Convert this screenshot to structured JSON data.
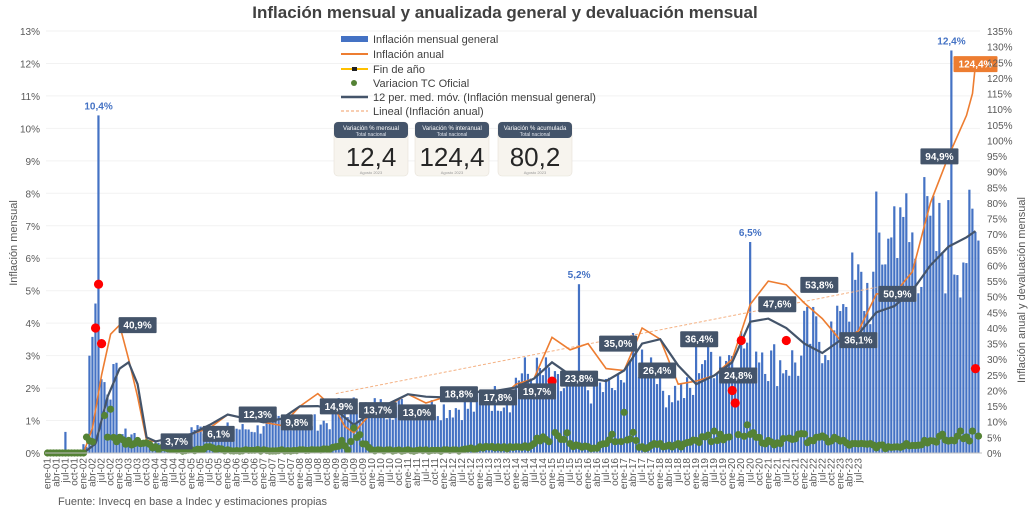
{
  "chart_data": {
    "type": "bar",
    "title": "Inflación mensual y anualizada general y devaluación mensual",
    "ylabel": "Inflación mensual",
    "y2label": "Inflación anual y devaluación mensual",
    "ylim": [
      0,
      13
    ],
    "y2lim": [
      0,
      135
    ],
    "yticks": [
      "0%",
      "1%",
      "2%",
      "3%",
      "4%",
      "5%",
      "6%",
      "7%",
      "8%",
      "9%",
      "10%",
      "11%",
      "12%",
      "13%"
    ],
    "y2ticks": [
      "0%",
      "5%",
      "10%",
      "15%",
      "20%",
      "25%",
      "30%",
      "35%",
      "40%",
      "45%",
      "50%",
      "55%",
      "60%",
      "65%",
      "70%",
      "75%",
      "80%",
      "85%",
      "90%",
      "95%",
      "100%",
      "105%",
      "110%",
      "115%",
      "120%",
      "125%",
      "130%",
      "135%"
    ],
    "xticks": [
      "ene-01",
      "abr-01",
      "jul-01",
      "oct-01",
      "ene-02",
      "abr-02",
      "jul-02",
      "oct-02",
      "ene-03",
      "abr-03",
      "jul-03",
      "oct-03",
      "ene-04",
      "abr-04",
      "jul-04",
      "oct-04",
      "ene-05",
      "abr-05",
      "jul-05",
      "oct-05",
      "ene-06",
      "abr-06",
      "jul-06",
      "oct-06",
      "ene-07",
      "abr-07",
      "jul-07",
      "oct-07",
      "ene-08",
      "abr-08",
      "jul-08",
      "oct-08",
      "ene-09",
      "abr-09",
      "jul-09",
      "oct-09",
      "ene-10",
      "abr-10",
      "jul-10",
      "oct-10",
      "ene-11",
      "abr-11",
      "jul-11",
      "oct-11",
      "ene-12",
      "abr-12",
      "jul-12",
      "oct-12",
      "ene-13",
      "abr-13",
      "jul-13",
      "oct-13",
      "ene-14",
      "abr-14",
      "jul-14",
      "oct-14",
      "ene-15",
      "abr-15",
      "jul-15",
      "oct-15",
      "ene-16",
      "abr-16",
      "jul-16",
      "oct-16",
      "ene-17",
      "abr-17",
      "jul-17",
      "oct-17",
      "ene-18",
      "abr-18",
      "jul-18",
      "oct-18",
      "ene-19",
      "abr-19",
      "jul-19",
      "oct-19",
      "ene-20",
      "abr-20",
      "jul-20",
      "oct-20",
      "ene-21",
      "abr-21",
      "jul-21",
      "oct-21",
      "ene-22",
      "abr-22",
      "jul-22",
      "oct-22",
      "ene-23",
      "abr-23",
      "jul-23"
    ],
    "legend": [
      "Inflación mensual general",
      "Inflación anual",
      "Fin de año",
      "Variacion TC Oficial",
      "12 per. med. móv. (Inflación mensual general)",
      "Lineal (Inflación anual)"
    ],
    "legend_position": "top-center",
    "colors": {
      "monthly": "#4472C4",
      "annual": "#ED7D31",
      "year_end": "#FFC000",
      "fx": "#548235",
      "fx_outlier": "#FF0000",
      "moving_avg": "#44546A",
      "trend": "#F4B183"
    },
    "series_annual_pct": [
      [
        0,
        0
      ],
      [
        12,
        0
      ],
      [
        15,
        8
      ],
      [
        18,
        25
      ],
      [
        21,
        38
      ],
      [
        24,
        40.9
      ],
      [
        27,
        30
      ],
      [
        30,
        18
      ],
      [
        33,
        4
      ],
      [
        36,
        3.7
      ],
      [
        42,
        5
      ],
      [
        48,
        6.1
      ],
      [
        54,
        8
      ],
      [
        60,
        12.3
      ],
      [
        66,
        11
      ],
      [
        72,
        9.8
      ],
      [
        78,
        8.8
      ],
      [
        84,
        14.9
      ],
      [
        90,
        19
      ],
      [
        96,
        13.7
      ],
      [
        99,
        8.5
      ],
      [
        102,
        6.5
      ],
      [
        108,
        13
      ],
      [
        114,
        15.5
      ],
      [
        120,
        18.8
      ],
      [
        126,
        16
      ],
      [
        132,
        17.8
      ],
      [
        138,
        18.8
      ],
      [
        144,
        19.7
      ],
      [
        150,
        17
      ],
      [
        156,
        22
      ],
      [
        162,
        23.8
      ],
      [
        168,
        37
      ],
      [
        174,
        33
      ],
      [
        180,
        35
      ],
      [
        186,
        27
      ],
      [
        192,
        26.4
      ],
      [
        198,
        40
      ],
      [
        204,
        36.4
      ],
      [
        210,
        22
      ],
      [
        216,
        23
      ],
      [
        222,
        24.8
      ],
      [
        228,
        30
      ],
      [
        234,
        47.6
      ],
      [
        240,
        55
      ],
      [
        246,
        53.8
      ],
      [
        252,
        48
      ],
      [
        258,
        43
      ],
      [
        264,
        36.1
      ],
      [
        270,
        39
      ],
      [
        276,
        50.9
      ],
      [
        282,
        51
      ],
      [
        288,
        58
      ],
      [
        294,
        80
      ],
      [
        300,
        94.9
      ],
      [
        306,
        108
      ],
      [
        308,
        115
      ],
      [
        309,
        124.4
      ]
    ],
    "series_moving_avg_pct": [
      [
        0,
        0
      ],
      [
        12,
        0
      ],
      [
        16,
        3
      ],
      [
        20,
        18
      ],
      [
        24,
        27
      ],
      [
        27,
        29
      ],
      [
        30,
        22
      ],
      [
        33,
        5
      ],
      [
        36,
        3.7
      ],
      [
        42,
        5
      ],
      [
        48,
        6.1
      ],
      [
        54,
        9
      ],
      [
        60,
        12.3
      ],
      [
        66,
        11
      ],
      [
        72,
        9.8
      ],
      [
        78,
        11
      ],
      [
        84,
        14.9
      ],
      [
        90,
        15
      ],
      [
        96,
        13.7
      ],
      [
        102,
        9
      ],
      [
        108,
        13
      ],
      [
        114,
        16
      ],
      [
        120,
        18.8
      ],
      [
        126,
        18
      ],
      [
        132,
        17.8
      ],
      [
        138,
        18
      ],
      [
        144,
        19.7
      ],
      [
        150,
        20
      ],
      [
        156,
        21
      ],
      [
        162,
        23.8
      ],
      [
        168,
        29
      ],
      [
        174,
        25
      ],
      [
        180,
        24
      ],
      [
        186,
        23
      ],
      [
        192,
        26.4
      ],
      [
        198,
        35
      ],
      [
        204,
        36.4
      ],
      [
        210,
        28
      ],
      [
        216,
        22
      ],
      [
        222,
        24.8
      ],
      [
        228,
        29
      ],
      [
        234,
        42
      ],
      [
        240,
        43
      ],
      [
        246,
        40
      ],
      [
        252,
        35
      ],
      [
        258,
        32
      ],
      [
        264,
        36.1
      ],
      [
        270,
        38
      ],
      [
        276,
        45
      ],
      [
        282,
        47
      ],
      [
        288,
        52
      ],
      [
        294,
        60
      ],
      [
        300,
        66
      ],
      [
        306,
        69
      ],
      [
        309,
        71
      ]
    ],
    "series_trend_pct": [
      [
        96,
        19
      ],
      [
        276,
        53
      ]
    ],
    "series_fx_pct": [
      [
        0,
        0
      ],
      [
        12,
        0
      ],
      [
        16,
        40
      ],
      [
        17,
        54
      ],
      [
        18,
        35
      ],
      [
        19,
        12
      ],
      [
        21,
        14
      ],
      [
        24,
        5
      ],
      [
        27,
        4
      ],
      [
        30,
        4
      ],
      [
        36,
        2
      ],
      [
        42,
        1
      ],
      [
        48,
        1
      ],
      [
        54,
        2
      ],
      [
        60,
        1
      ],
      [
        66,
        1
      ],
      [
        72,
        1
      ],
      [
        78,
        1
      ],
      [
        84,
        1
      ],
      [
        90,
        1
      ],
      [
        96,
        2
      ],
      [
        98,
        4
      ],
      [
        100,
        1
      ],
      [
        102,
        8
      ],
      [
        108,
        1
      ],
      [
        114,
        1
      ],
      [
        120,
        1
      ],
      [
        126,
        1
      ],
      [
        132,
        1
      ],
      [
        138,
        1
      ],
      [
        144,
        2
      ],
      [
        150,
        2
      ],
      [
        156,
        2
      ],
      [
        162,
        3
      ],
      [
        168,
        23
      ],
      [
        174,
        3
      ],
      [
        180,
        2
      ],
      [
        186,
        3
      ],
      [
        188,
        6
      ],
      [
        190,
        34
      ],
      [
        192,
        13
      ],
      [
        196,
        4
      ],
      [
        198,
        2
      ],
      [
        202,
        3
      ],
      [
        204,
        3
      ],
      [
        210,
        3
      ],
      [
        216,
        4
      ],
      [
        222,
        7
      ],
      [
        224,
        6
      ],
      [
        226,
        5
      ],
      [
        228,
        20
      ],
      [
        229,
        16
      ],
      [
        231,
        36
      ],
      [
        233,
        9
      ],
      [
        236,
        5
      ],
      [
        240,
        4
      ],
      [
        244,
        3
      ],
      [
        246,
        36
      ],
      [
        250,
        6
      ],
      [
        256,
        5
      ],
      [
        262,
        5
      ],
      [
        268,
        3
      ],
      [
        274,
        3
      ],
      [
        280,
        2
      ],
      [
        286,
        3
      ],
      [
        292,
        4
      ],
      [
        298,
        6
      ],
      [
        304,
        7
      ],
      [
        308,
        7
      ],
      [
        309,
        27
      ]
    ],
    "annotations_annual": [
      {
        "i": 27,
        "pct": 40.9,
        "label": "40,9%"
      },
      {
        "i": 39,
        "pct": 3.7,
        "label": "3,7%"
      },
      {
        "i": 51,
        "pct": 6.1,
        "label": "6,1%"
      },
      {
        "i": 63,
        "pct": 12.3,
        "label": "12,3%"
      },
      {
        "i": 75,
        "pct": 9.8,
        "label": "9,8%"
      },
      {
        "i": 87,
        "pct": 14.9,
        "label": "14,9%"
      },
      {
        "i": 99,
        "pct": 13.7,
        "label": "13,7%"
      },
      {
        "i": 111,
        "pct": 13.0,
        "label": "13,0%"
      },
      {
        "i": 123,
        "pct": 18.8,
        "label": "18,8%"
      },
      {
        "i": 135,
        "pct": 17.8,
        "label": "17,8%"
      },
      {
        "i": 147,
        "pct": 19.7,
        "label": "19,7%"
      },
      {
        "i": 159,
        "pct": 23.8,
        "label": "23,8%"
      },
      {
        "i": 171,
        "pct": 35.0,
        "label": "35,0%"
      },
      {
        "i": 183,
        "pct": 26.4,
        "label": "26,4%"
      },
      {
        "i": 195,
        "pct": 36.4,
        "label": "36,4%"
      },
      {
        "i": 207,
        "pct": 24.8,
        "label": "24,8%"
      },
      {
        "i": 219,
        "pct": 47.6,
        "label": "47,6%"
      },
      {
        "i": 231,
        "pct": 53.8,
        "label": "53,8%"
      },
      {
        "i": 243,
        "pct": 36.1,
        "label": "36,1%"
      },
      {
        "i": 255,
        "pct": 50.9,
        "label": "50,9%"
      },
      {
        "i": 267,
        "pct": 94.9,
        "label": "94,9%"
      },
      {
        "i": 278,
        "pct": 124.4,
        "label": "124,4%",
        "highlight": true
      }
    ],
    "monthly_peaks": [
      {
        "i": 15,
        "value": 10.4,
        "label": "10,4%"
      },
      {
        "i": 159,
        "value": 5.2,
        "label": "5,2%"
      },
      {
        "i": 211,
        "value": 6.5,
        "label": "6,5%"
      },
      {
        "i": 271,
        "value": 12.4,
        "label": "12,4%"
      }
    ]
  },
  "kpi_cards": [
    {
      "title": "Variación % mensual",
      "subtitle": "Total nacional",
      "value": "12,4",
      "footer": "Agosto 2023"
    },
    {
      "title": "Variación % interanual",
      "subtitle": "Total nacional",
      "value": "124,4",
      "footer": "Agosto 2023"
    },
    {
      "title": "Variación % acumulada",
      "subtitle": "Total nacional",
      "value": "80,2",
      "footer": "Agosto 2023"
    }
  ],
  "source": "Fuente: Invecq en base a Indec y estimaciones propias"
}
